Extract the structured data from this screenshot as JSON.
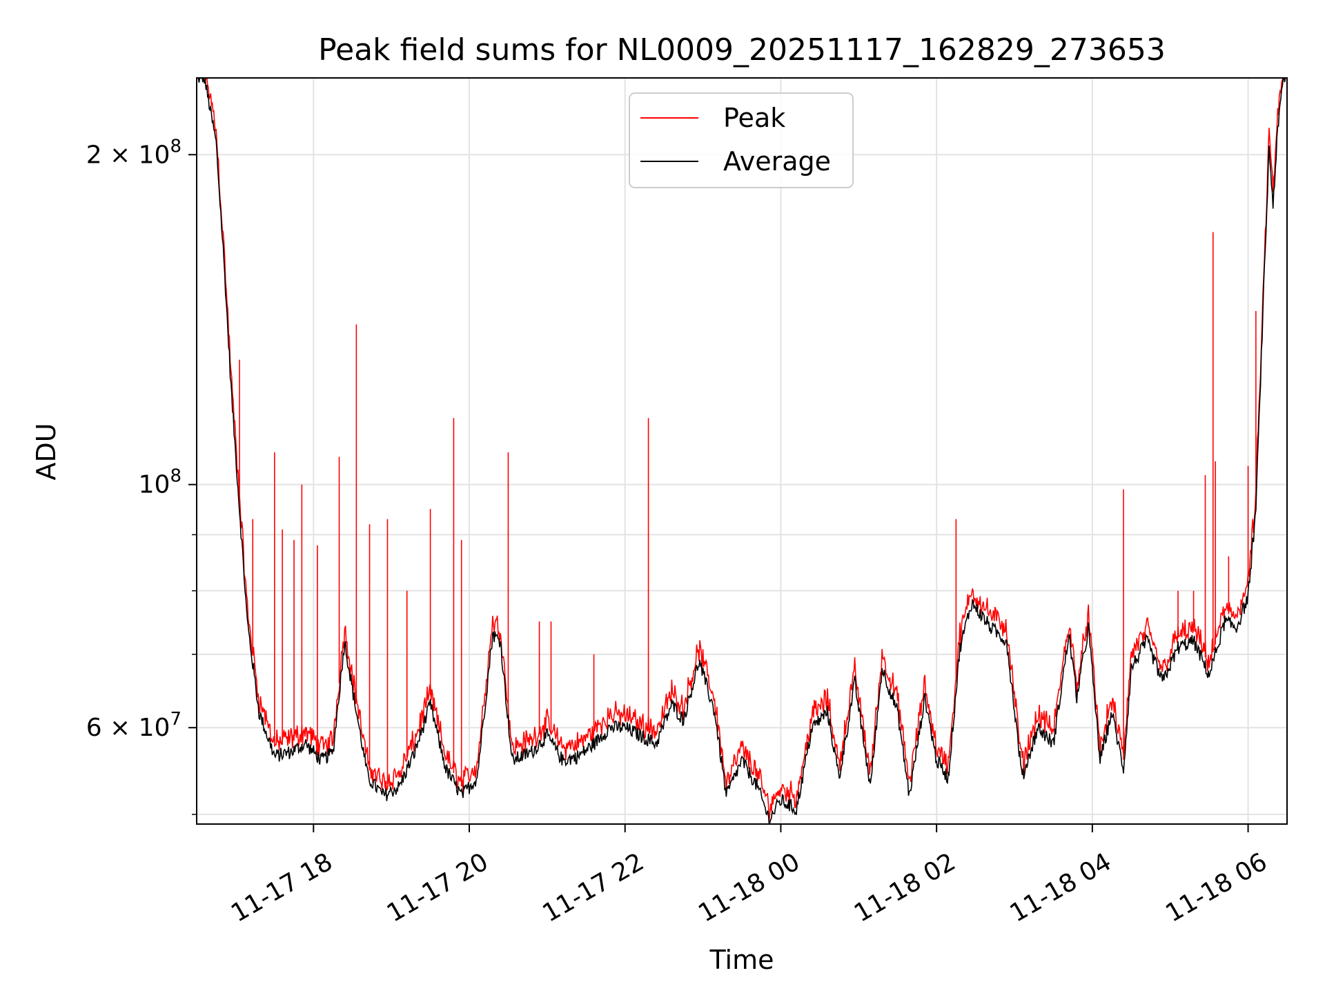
{
  "chart_data": {
    "type": "line",
    "title": "Peak field sums for NL0009_20251117_162829_273653",
    "xlabel": "Time",
    "ylabel": "ADU",
    "yscale": "log",
    "ylim": [
      49000000,
      235000000
    ],
    "xlim_hours": [
      16.5,
      30.5
    ],
    "grid": true,
    "legend_position": "top-center",
    "x_ticks": [
      {
        "hour": 18,
        "label": "11-17 18"
      },
      {
        "hour": 20,
        "label": "11-17 20"
      },
      {
        "hour": 22,
        "label": "11-17 22"
      },
      {
        "hour": 24,
        "label": "11-18 00"
      },
      {
        "hour": 26,
        "label": "11-18 02"
      },
      {
        "hour": 28,
        "label": "11-18 04"
      },
      {
        "hour": 30,
        "label": "11-18 06"
      }
    ],
    "y_ticks_major": [
      {
        "value": 60000000,
        "mantissa": "6",
        "exp": "7"
      },
      {
        "value": 100000000,
        "mantissa": "",
        "exp": "8"
      },
      {
        "value": 200000000,
        "mantissa": "2",
        "exp": "8"
      }
    ],
    "y_ticks_minor": [
      50000000,
      70000000,
      80000000,
      90000000
    ],
    "series": [
      {
        "name": "Peak",
        "color": "#ff0000"
      },
      {
        "name": "Average",
        "color": "#000000"
      }
    ],
    "average_profile": [
      [
        16.5,
        235000000
      ],
      [
        16.6,
        235000000
      ],
      [
        16.75,
        205000000
      ],
      [
        16.85,
        160000000
      ],
      [
        16.95,
        120000000
      ],
      [
        17.05,
        95000000
      ],
      [
        17.15,
        75000000
      ],
      [
        17.3,
        62000000
      ],
      [
        17.5,
        56500000
      ],
      [
        17.7,
        57000000
      ],
      [
        17.9,
        58000000
      ],
      [
        18.1,
        56000000
      ],
      [
        18.25,
        57000000
      ],
      [
        18.4,
        72000000
      ],
      [
        18.5,
        65000000
      ],
      [
        18.7,
        54000000
      ],
      [
        18.9,
        52000000
      ],
      [
        19.1,
        53000000
      ],
      [
        19.3,
        57000000
      ],
      [
        19.5,
        63000000
      ],
      [
        19.7,
        55000000
      ],
      [
        19.9,
        52000000
      ],
      [
        20.1,
        54000000
      ],
      [
        20.3,
        73000000
      ],
      [
        20.4,
        72000000
      ],
      [
        20.55,
        56000000
      ],
      [
        20.8,
        57000000
      ],
      [
        21.0,
        59000000
      ],
      [
        21.2,
        56000000
      ],
      [
        21.4,
        56500000
      ],
      [
        21.6,
        58000000
      ],
      [
        21.8,
        60000000
      ],
      [
        22.0,
        60000000
      ],
      [
        22.2,
        59000000
      ],
      [
        22.4,
        58000000
      ],
      [
        22.6,
        63000000
      ],
      [
        22.75,
        61000000
      ],
      [
        22.95,
        69000000
      ],
      [
        23.15,
        62000000
      ],
      [
        23.3,
        52000000
      ],
      [
        23.5,
        56000000
      ],
      [
        23.7,
        53000000
      ],
      [
        23.85,
        49500000
      ],
      [
        24.0,
        51500000
      ],
      [
        24.2,
        50500000
      ],
      [
        24.4,
        60000000
      ],
      [
        24.6,
        62000000
      ],
      [
        24.75,
        54000000
      ],
      [
        24.95,
        66000000
      ],
      [
        25.15,
        53000000
      ],
      [
        25.3,
        68000000
      ],
      [
        25.5,
        62000000
      ],
      [
        25.65,
        52000000
      ],
      [
        25.85,
        64000000
      ],
      [
        26.0,
        56000000
      ],
      [
        26.15,
        54000000
      ],
      [
        26.3,
        71000000
      ],
      [
        26.45,
        78000000
      ],
      [
        26.7,
        74000000
      ],
      [
        26.9,
        72000000
      ],
      [
        27.1,
        54000000
      ],
      [
        27.3,
        60000000
      ],
      [
        27.5,
        58000000
      ],
      [
        27.7,
        73000000
      ],
      [
        27.8,
        64000000
      ],
      [
        27.95,
        74000000
      ],
      [
        28.1,
        56000000
      ],
      [
        28.25,
        62000000
      ],
      [
        28.4,
        55000000
      ],
      [
        28.5,
        68000000
      ],
      [
        28.7,
        72000000
      ],
      [
        28.9,
        66000000
      ],
      [
        29.1,
        71000000
      ],
      [
        29.3,
        72000000
      ],
      [
        29.5,
        67000000
      ],
      [
        29.7,
        75000000
      ],
      [
        29.85,
        74000000
      ],
      [
        30.0,
        79000000
      ],
      [
        30.1,
        95000000
      ],
      [
        30.2,
        150000000
      ],
      [
        30.27,
        203000000
      ],
      [
        30.32,
        180000000
      ],
      [
        30.38,
        210000000
      ],
      [
        30.45,
        235000000
      ],
      [
        30.5,
        235000000
      ]
    ],
    "peak_spikes": [
      [
        17.05,
        130000000
      ],
      [
        17.22,
        93000000
      ],
      [
        17.5,
        107000000
      ],
      [
        17.6,
        91000000
      ],
      [
        17.75,
        89000000
      ],
      [
        17.85,
        100000000
      ],
      [
        18.05,
        88000000
      ],
      [
        18.33,
        106000000
      ],
      [
        18.55,
        140000000
      ],
      [
        18.72,
        92000000
      ],
      [
        18.95,
        93000000
      ],
      [
        19.2,
        80000000
      ],
      [
        19.5,
        95000000
      ],
      [
        19.8,
        115000000
      ],
      [
        19.9,
        89000000
      ],
      [
        20.5,
        107000000
      ],
      [
        20.9,
        75000000
      ],
      [
        21.05,
        75000000
      ],
      [
        21.6,
        70000000
      ],
      [
        22.3,
        115000000
      ],
      [
        26.25,
        93000000
      ],
      [
        28.4,
        99000000
      ],
      [
        29.1,
        80000000
      ],
      [
        29.3,
        80000000
      ],
      [
        29.45,
        102000000
      ],
      [
        29.55,
        170000000
      ],
      [
        29.58,
        105000000
      ],
      [
        29.75,
        86000000
      ],
      [
        30.0,
        104000000
      ],
      [
        30.1,
        144000000
      ]
    ]
  }
}
